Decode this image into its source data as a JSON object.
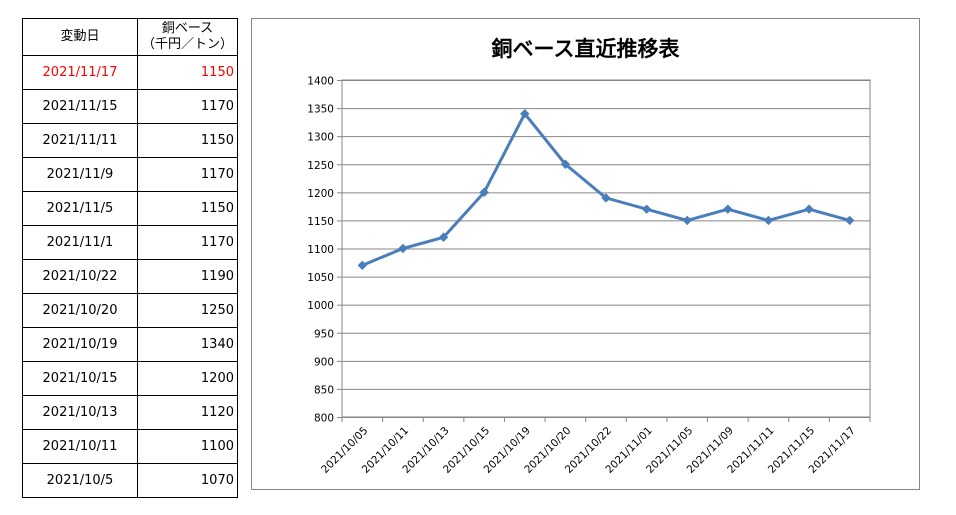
{
  "table": {
    "header": {
      "date": "変動日",
      "price_line1": "銅ベース",
      "price_line2": "（千円／トン）"
    },
    "rows": [
      {
        "date": "2021/11/17",
        "price": "1150",
        "highlight": true
      },
      {
        "date": "2021/11/15",
        "price": "1170"
      },
      {
        "date": "2021/11/11",
        "price": "1150"
      },
      {
        "date": "2021/11/9",
        "price": "1170"
      },
      {
        "date": "2021/11/5",
        "price": "1150"
      },
      {
        "date": "2021/11/1",
        "price": "1170"
      },
      {
        "date": "2021/10/22",
        "price": "1190"
      },
      {
        "date": "2021/10/20",
        "price": "1250"
      },
      {
        "date": "2021/10/19",
        "price": "1340"
      },
      {
        "date": "2021/10/15",
        "price": "1200"
      },
      {
        "date": "2021/10/13",
        "price": "1120"
      },
      {
        "date": "2021/10/11",
        "price": "1100"
      },
      {
        "date": "2021/10/5",
        "price": "1070"
      }
    ],
    "highlight_color": "#ff0000"
  },
  "chart_data": {
    "type": "line",
    "title": "銅ベース直近推移表",
    "categories": [
      "2021/10/05",
      "2021/10/11",
      "2021/10/13",
      "2021/10/15",
      "2021/10/19",
      "2021/10/20",
      "2021/10/22",
      "2021/11/01",
      "2021/11/05",
      "2021/11/09",
      "2021/11/11",
      "2021/11/15",
      "2021/11/17"
    ],
    "series": [
      {
        "values": [
          1070,
          1100,
          1120,
          1200,
          1340,
          1250,
          1190,
          1170,
          1150,
          1170,
          1150,
          1170,
          1150
        ],
        "color": "#4a7ebb",
        "marker": "diamond"
      }
    ],
    "xlabel": "",
    "ylabel": "",
    "ylim": [
      800,
      1400
    ],
    "yticks": [
      800,
      850,
      900,
      950,
      1000,
      1050,
      1100,
      1150,
      1200,
      1250,
      1300,
      1350,
      1400
    ],
    "grid": true,
    "legend": "none"
  }
}
